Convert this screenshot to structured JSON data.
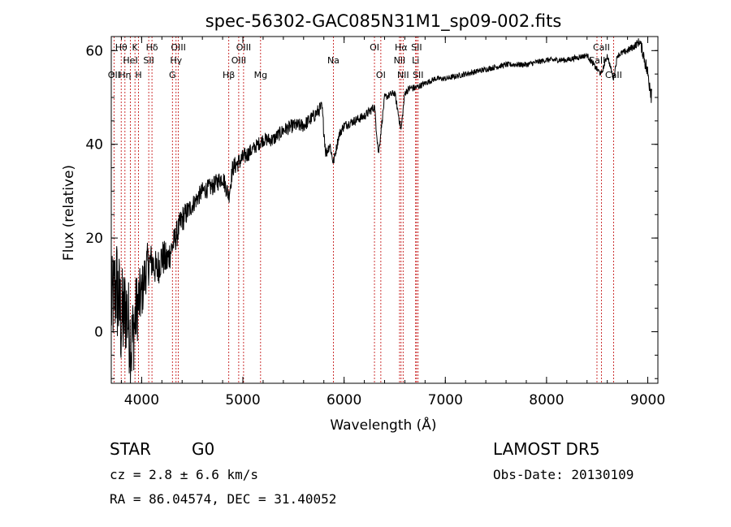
{
  "chart_data": {
    "type": "line",
    "title": "spec-56302-GAC085N31M1_sp09-002.fits",
    "xlabel": "Wavelength (Å)",
    "ylabel": "Flux (relative)",
    "xlim": [
      3700,
      9100
    ],
    "ylim": [
      -11,
      63
    ],
    "x_ticks": [
      4000,
      5000,
      6000,
      7000,
      8000,
      9000
    ],
    "y_ticks": [
      0,
      20,
      40,
      60
    ],
    "grid": false,
    "series": [
      {
        "color": "#000000",
        "x": [
          3700,
          3750,
          3800,
          3850,
          3900,
          3950,
          4000,
          4050,
          4100,
          4150,
          4200,
          4250,
          4300,
          4350,
          4400,
          4500,
          4600,
          4700,
          4800,
          4861,
          4900,
          5000,
          5100,
          5200,
          5300,
          5400,
          5500,
          5600,
          5700,
          5780,
          5820,
          5860,
          5893,
          5950,
          6000,
          6100,
          6200,
          6300,
          6340,
          6400,
          6500,
          6563,
          6600,
          6650,
          6700,
          6800,
          6900,
          7000,
          7200,
          7400,
          7600,
          7800,
          8000,
          8200,
          8400,
          8498,
          8542,
          8600,
          8662,
          8700,
          8800,
          8870,
          8920,
          8960,
          9000,
          9040
        ],
        "y": [
          5,
          10,
          2,
          5,
          -3,
          5,
          8,
          14,
          15,
          13,
          16,
          15,
          18,
          21,
          24,
          27,
          30,
          31,
          33,
          29,
          35,
          37,
          39,
          41,
          41,
          43,
          44,
          44,
          46,
          48,
          38,
          40,
          36,
          42,
          44,
          45,
          46,
          48,
          38,
          50,
          51,
          43,
          51,
          52,
          52,
          53,
          54,
          54,
          55,
          56,
          57,
          57,
          58,
          58,
          59,
          56,
          55,
          59,
          54,
          59,
          60,
          61,
          62,
          59,
          55,
          51
        ],
        "noise_amplitude": [
          10,
          12,
          12,
          10,
          10,
          8,
          6,
          5,
          4,
          4,
          4,
          4,
          3,
          3,
          3,
          2,
          2,
          2,
          2,
          2,
          2,
          2,
          1.5,
          1.5,
          1.5,
          1.5,
          1.5,
          1.5,
          1.5,
          1.5,
          1.5,
          1,
          1,
          1,
          1,
          1,
          1,
          1,
          1,
          0.8,
          0.8,
          0.8,
          0.8,
          0.8,
          0.8,
          0.6,
          0.6,
          0.6,
          0.6,
          0.6,
          0.6,
          0.6,
          0.6,
          0.6,
          0.6,
          0.6,
          0.6,
          0.6,
          0.6,
          0.6,
          0.8,
          0.8,
          1,
          1.5,
          2,
          3
        ]
      }
    ],
    "line_markers": [
      {
        "label": "OII",
        "wavelength": 3727,
        "row": 3
      },
      {
        "label": "Hθ",
        "wavelength": 3798,
        "row": 1
      },
      {
        "label": "Hη",
        "wavelength": 3835,
        "row": 3
      },
      {
        "label": "HeI",
        "wavelength": 3889,
        "row": 2
      },
      {
        "label": "K",
        "wavelength": 3934,
        "row": 1
      },
      {
        "label": "H",
        "wavelength": 3969,
        "row": 3
      },
      {
        "label": "SII",
        "wavelength": 4070,
        "row": 2
      },
      {
        "label": "Hδ",
        "wavelength": 4102,
        "row": 1
      },
      {
        "label": "G",
        "wavelength": 4304,
        "row": 3
      },
      {
        "label": "Hγ",
        "wavelength": 4340,
        "row": 2
      },
      {
        "label": "OIII",
        "wavelength": 4363,
        "row": 1
      },
      {
        "label": "Hβ",
        "wavelength": 4861,
        "row": 3
      },
      {
        "label": "OIII",
        "wavelength": 4959,
        "row": 2
      },
      {
        "label": "OIII",
        "wavelength": 5007,
        "row": 1
      },
      {
        "label": "Mg",
        "wavelength": 5175,
        "row": 3
      },
      {
        "label": "Na",
        "wavelength": 5894,
        "row": 2
      },
      {
        "label": "OI",
        "wavelength": 6300,
        "row": 1
      },
      {
        "label": "OI",
        "wavelength": 6363,
        "row": 3
      },
      {
        "label": "NII",
        "wavelength": 6548,
        "row": 2
      },
      {
        "label": "Hα",
        "wavelength": 6563,
        "row": 1
      },
      {
        "label": "NII",
        "wavelength": 6583,
        "row": 3
      },
      {
        "label": "Li",
        "wavelength": 6707,
        "row": 2
      },
      {
        "label": "SII",
        "wavelength": 6716,
        "row": 1
      },
      {
        "label": "SII",
        "wavelength": 6731,
        "row": 3
      },
      {
        "label": "CaII",
        "wavelength": 8498,
        "row": 2
      },
      {
        "label": "CaII",
        "wavelength": 8542,
        "row": 1
      },
      {
        "label": "CaII",
        "wavelength": 8662,
        "row": 3
      }
    ],
    "marker_color": "#c00000"
  },
  "info": {
    "object_class": "STAR",
    "subclass": "G0",
    "survey": "LAMOST DR5",
    "redshift": "cz = 2.8 ± 6.6 km/s",
    "obs_date": "Obs-Date: 20130109",
    "coords": "RA =  86.04574, DEC =  31.40052"
  }
}
